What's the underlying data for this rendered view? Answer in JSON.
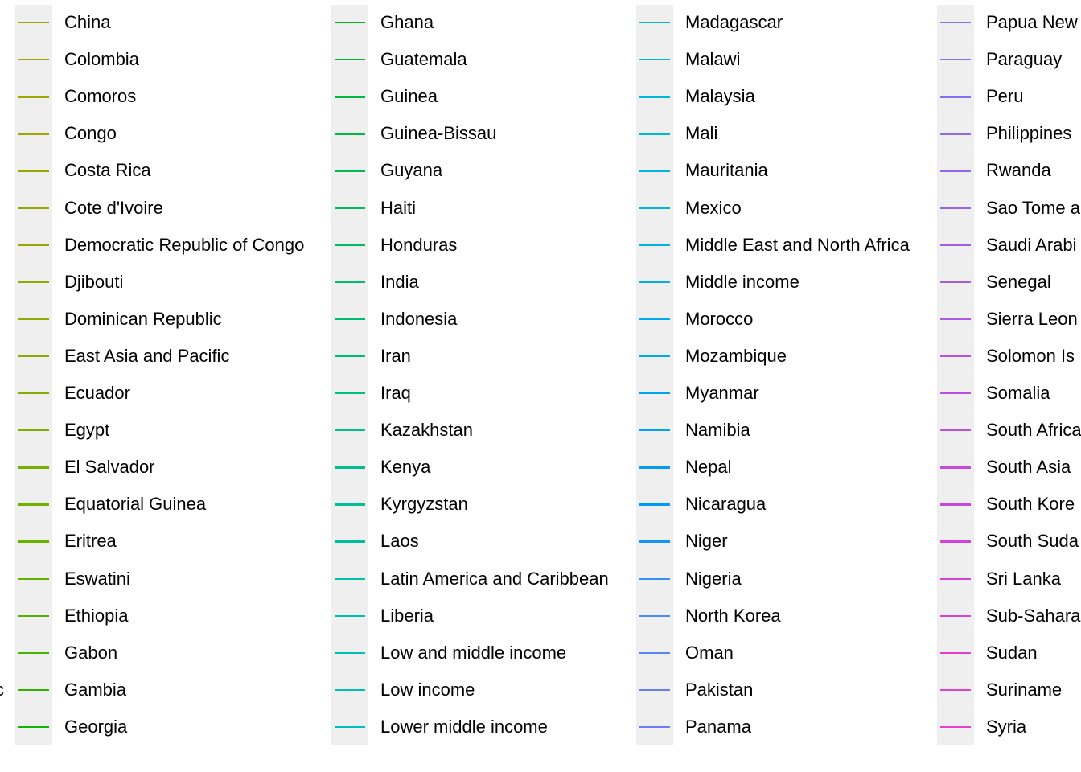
{
  "chart_data": {
    "type": "line",
    "legend": {
      "placement": "right",
      "cut_off_label": "c",
      "columns": [
        {
          "entries": [
            {
              "label": "China",
              "color": "#A3A500"
            },
            {
              "label": "Colombia",
              "color": "#A2A500"
            },
            {
              "label": "Comoros",
              "color": "#A0A600"
            },
            {
              "label": "Congo",
              "color": "#9EA700"
            },
            {
              "label": "Costa Rica",
              "color": "#9CA700"
            },
            {
              "label": "Cote d'Ivoire",
              "color": "#99A800"
            },
            {
              "label": "Democratic Republic of Congo",
              "color": "#96A900"
            },
            {
              "label": "Djibouti",
              "color": "#93AA00"
            },
            {
              "label": "Dominican Republic",
              "color": "#8FAA00"
            },
            {
              "label": "East Asia and Pacific",
              "color": "#8BAB00"
            },
            {
              "label": "Ecuador",
              "color": "#86AC00"
            },
            {
              "label": "Egypt",
              "color": "#80AD00"
            },
            {
              "label": "El Salvador",
              "color": "#79AE00"
            },
            {
              "label": "Equatorial Guinea",
              "color": "#72AF00"
            },
            {
              "label": "Eritrea",
              "color": "#6AB000"
            },
            {
              "label": "Eswatini",
              "color": "#60B100"
            },
            {
              "label": "Ethiopia",
              "color": "#55B200"
            },
            {
              "label": "Gabon",
              "color": "#46B300"
            },
            {
              "label": "Gambia",
              "color": "#31B400"
            },
            {
              "label": "Georgia",
              "color": "#0CB702"
            }
          ]
        },
        {
          "entries": [
            {
              "label": "Ghana",
              "color": "#00B81F"
            },
            {
              "label": "Guatemala",
              "color": "#00B92F"
            },
            {
              "label": "Guinea",
              "color": "#00BA3C"
            },
            {
              "label": "Guinea-Bissau",
              "color": "#00BA47"
            },
            {
              "label": "Guyana",
              "color": "#00BB51"
            },
            {
              "label": "Haiti",
              "color": "#00BB5A"
            },
            {
              "label": "Honduras",
              "color": "#00BC63"
            },
            {
              "label": "India",
              "color": "#00BC6B"
            },
            {
              "label": "Indonesia",
              "color": "#00BD73"
            },
            {
              "label": "Iran",
              "color": "#00BD7A"
            },
            {
              "label": "Iraq",
              "color": "#00BE82"
            },
            {
              "label": "Kazakhstan",
              "color": "#00BE89"
            },
            {
              "label": "Kenya",
              "color": "#00BE90"
            },
            {
              "label": "Kyrgyzstan",
              "color": "#00BF97"
            },
            {
              "label": "Laos",
              "color": "#00BF9E"
            },
            {
              "label": "Latin America and Caribbean",
              "color": "#00BFA5"
            },
            {
              "label": "Liberia",
              "color": "#00BFAC"
            },
            {
              "label": "Low and middle income",
              "color": "#00BFB3"
            },
            {
              "label": "Low income",
              "color": "#00BFBA"
            },
            {
              "label": "Lower middle income",
              "color": "#00BEC1"
            }
          ]
        },
        {
          "entries": [
            {
              "label": "Madagascar",
              "color": "#00BCCA"
            },
            {
              "label": "Malawi",
              "color": "#00BBD0"
            },
            {
              "label": "Malaysia",
              "color": "#00B9D6"
            },
            {
              "label": "Mali",
              "color": "#00B7DC"
            },
            {
              "label": "Mauritania",
              "color": "#00B5E1"
            },
            {
              "label": "Mexico",
              "color": "#00B3E6"
            },
            {
              "label": "Middle East and North Africa",
              "color": "#00B0EB"
            },
            {
              "label": "Middle income",
              "color": "#00ADEE"
            },
            {
              "label": "Morocco",
              "color": "#00AAF1"
            },
            {
              "label": "Mozambique",
              "color": "#00A7F4"
            },
            {
              "label": "Myanmar",
              "color": "#00A4F6"
            },
            {
              "label": "Namibia",
              "color": "#00A0F7"
            },
            {
              "label": "Nepal",
              "color": "#009CF8"
            },
            {
              "label": "Nicaragua",
              "color": "#0098F9"
            },
            {
              "label": "Niger",
              "color": "#1493FA"
            },
            {
              "label": "Nigeria",
              "color": "#378FFA"
            },
            {
              "label": "North Korea",
              "color": "#4B8AFA"
            },
            {
              "label": "Oman",
              "color": "#5A85FA"
            },
            {
              "label": "Pakistan",
              "color": "#6680FA"
            },
            {
              "label": "Panama",
              "color": "#717BFA"
            }
          ]
        },
        {
          "entries": [
            {
              "label": "Papua New",
              "color": "#7B77F8"
            },
            {
              "label": "Paraguay",
              "color": "#8172F6"
            },
            {
              "label": "Peru",
              "color": "#876EF3"
            },
            {
              "label": "Philippines",
              "color": "#8E6AF0"
            },
            {
              "label": "Rwanda",
              "color": "#9466EC"
            },
            {
              "label": "Sao Tome a",
              "color": "#9A62E9"
            },
            {
              "label": "Saudi Arabi",
              "color": "#A05EE6"
            },
            {
              "label": "Senegal",
              "color": "#A65BE4"
            },
            {
              "label": "Sierra Leon",
              "color": "#AC58E2"
            },
            {
              "label": "Solomon Is",
              "color": "#B254E1"
            },
            {
              "label": "Somalia",
              "color": "#B851E0"
            },
            {
              "label": "South Africa",
              "color": "#BE4EDF"
            },
            {
              "label": "South Asia",
              "color": "#C44ADE"
            },
            {
              "label": "South Kore",
              "color": "#CA47DD"
            },
            {
              "label": "South Suda",
              "color": "#D044DB"
            },
            {
              "label": "Sri Lanka",
              "color": "#D641D9"
            },
            {
              "label": "Sub-Sahara",
              "color": "#DC3FD6"
            },
            {
              "label": "Sudan",
              "color": "#E13ED2"
            },
            {
              "label": "Suriname",
              "color": "#E63ECD"
            },
            {
              "label": "Syria",
              "color": "#E83FC9"
            }
          ]
        }
      ]
    }
  }
}
